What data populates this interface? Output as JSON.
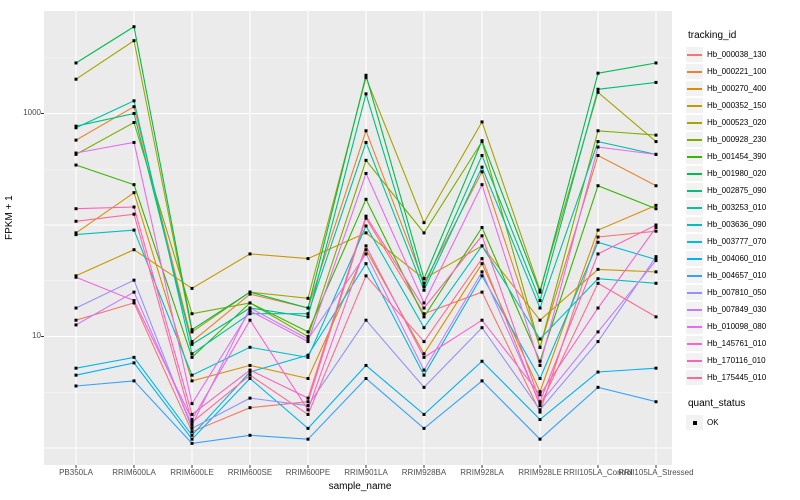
{
  "chart_data": {
    "type": "line",
    "xlabel": "sample_name",
    "ylabel": "FPKM + 1",
    "y_scale": "log10",
    "panel_bg": "#EBEBEB",
    "grid_color": "#FFFFFF",
    "marker_color": "#000000",
    "legend_title": "tracking_id",
    "y_ticks": [
      {
        "label": "1000",
        "value": 1000
      },
      {
        "label": "10",
        "value": 10
      }
    ],
    "grid_major_values": [
      1,
      10,
      100,
      1000
    ],
    "grid_minor_values": [
      3.162,
      31.62,
      316.2,
      3162
    ],
    "ylim_log": [
      0.7,
      8300
    ],
    "categories": [
      "PB350LA",
      "RRIM600LA",
      "RRIM600LE",
      "RRIM600SE",
      "RRIM600PE",
      "RRIM901LA",
      "RRIM928BA",
      "RRIM928LA",
      "RRIM928LE",
      "RRII105LA_Control",
      "RRII105LA_Stressed"
    ],
    "series": [
      {
        "name": "Hb_000038_130",
        "color": "#F8766D",
        "values": [
          14,
          20,
          1.4,
          2.3,
          2.6,
          115,
          16,
          25,
          2.1,
          78,
          88
        ]
      },
      {
        "name": "Hb_000221_100",
        "color": "#EA8331",
        "values": [
          577,
          1150,
          9,
          24,
          18,
          700,
          30,
          300,
          8,
          420,
          225
        ]
      },
      {
        "name": "Hb_000270_400",
        "color": "#D89000",
        "values": [
          85,
          195,
          4,
          5.5,
          4.2,
          60,
          7,
          45,
          3.2,
          90,
          150
        ]
      },
      {
        "name": "Hb_000352_150",
        "color": "#C49A00",
        "values": [
          35,
          60,
          27,
          55,
          50,
          85,
          33,
          65,
          14,
          40,
          38
        ]
      },
      {
        "name": "Hb_000523_020",
        "color": "#A3A500",
        "values": [
          2030,
          4500,
          11,
          25,
          22,
          2100,
          105,
          840,
          26,
          1550,
          560
        ]
      },
      {
        "name": "Hb_000928_230",
        "color": "#7CAE00",
        "values": [
          430,
          830,
          16,
          20,
          10,
          380,
          85,
          560,
          8,
          700,
          640
        ]
      },
      {
        "name": "Hb_001454_390",
        "color": "#39B600",
        "values": [
          345,
          230,
          6.5,
          20,
          11,
          170,
          15,
          95,
          6,
          225,
          140
        ]
      },
      {
        "name": "Hb_001980_020",
        "color": "#00BB4E",
        "values": [
          2840,
          6000,
          11.5,
          25,
          18,
          2200,
          33,
          570,
          25,
          2300,
          2840
        ]
      },
      {
        "name": "Hb_002875_090",
        "color": "#00BF7D",
        "values": [
          770,
          1000,
          8.5,
          18,
          15,
          1500,
          28,
          420,
          21,
          1650,
          1900
        ]
      },
      {
        "name": "Hb_003253_010",
        "color": "#00C1A3",
        "values": [
          745,
          1300,
          7,
          16,
          16,
          550,
          26,
          330,
          18,
          560,
          430
        ]
      },
      {
        "name": "Hb_003636_090",
        "color": "#00BFC4",
        "values": [
          82,
          90,
          4.5,
          8,
          6.5,
          98,
          12,
          65,
          9.5,
          33,
          30
        ]
      },
      {
        "name": "Hb_003777_070",
        "color": "#00BAE0",
        "values": [
          5.2,
          6.5,
          1.3,
          4.8,
          6.8,
          45,
          4.5,
          35,
          4.2,
          70,
          49
        ]
      },
      {
        "name": "Hb_004060_010",
        "color": "#00B0F6",
        "values": [
          4.5,
          5.8,
          1.2,
          4.2,
          1.5,
          5.5,
          2.0,
          6.0,
          1.8,
          4.8,
          5.2
        ]
      },
      {
        "name": "Hb_004657_010",
        "color": "#35A2FF",
        "values": [
          3.6,
          4.0,
          1.1,
          1.3,
          1.2,
          4.2,
          1.5,
          4.0,
          1.2,
          3.5,
          2.6
        ]
      },
      {
        "name": "Hb_007810_050",
        "color": "#9590FF",
        "values": [
          18,
          32,
          1.5,
          2.8,
          2.4,
          14,
          3.5,
          12,
          2.2,
          9,
          52
        ]
      },
      {
        "name": "Hb_007849_030",
        "color": "#C77CFF",
        "values": [
          12.7,
          25,
          1.6,
          18,
          9.5,
          55,
          5,
          38,
          2.5,
          11,
          48
        ]
      },
      {
        "name": "Hb_010098_080",
        "color": "#E76BF3",
        "values": [
          442,
          550,
          2.5,
          17,
          9,
          290,
          20,
          230,
          5.5,
          500,
          430
        ]
      },
      {
        "name": "Hb_145761_010",
        "color": "#FA62DB",
        "values": [
          34,
          21,
          1.8,
          14,
          2.2,
          65,
          6.5,
          14,
          3.0,
          18,
          95
        ]
      },
      {
        "name": "Hb_170116_010",
        "color": "#FF62BC",
        "values": [
          140,
          145,
          2.0,
          5,
          2.8,
          120,
          18,
          80,
          2.6,
          55,
          100
        ]
      },
      {
        "name": "Hb_175445_010",
        "color": "#FF6A98",
        "values": [
          108,
          125,
          1.7,
          4.5,
          2.0,
          35,
          9,
          50,
          2.4,
          30,
          15
        ]
      }
    ],
    "legend2": {
      "title": "quant_status",
      "items": [
        {
          "label": "OK",
          "marker": "black-square"
        }
      ]
    }
  }
}
